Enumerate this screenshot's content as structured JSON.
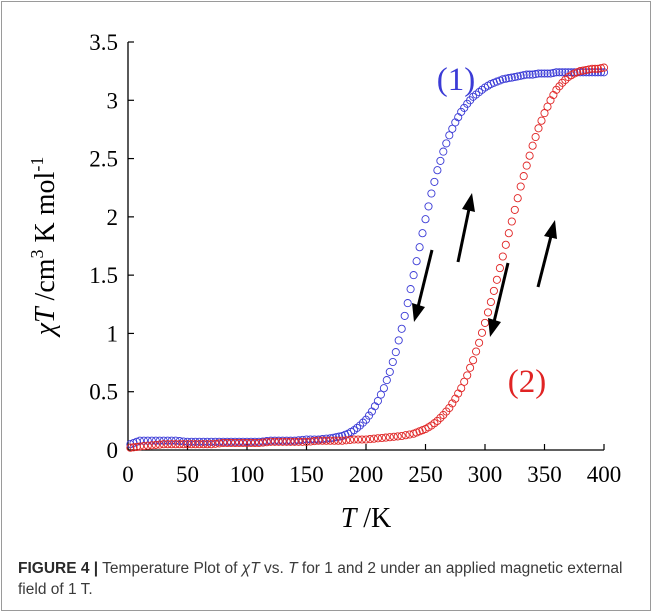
{
  "chart_data": {
    "type": "scatter",
    "xlabel_italic": "T",
    "xlabel_unit": " /K",
    "ylabel": {
      "chi": "χ",
      "T": "T",
      "rest": " /cm",
      "sup1": "3",
      "mid": " K mol",
      "sup2": "-1"
    },
    "xlim": [
      0,
      400
    ],
    "ylim": [
      0,
      3.5
    ],
    "xticks": [
      "0",
      "50",
      "100",
      "150",
      "200",
      "250",
      "300",
      "350",
      "400"
    ],
    "yticks": [
      "0",
      "0.5",
      "1",
      "1.5",
      "2",
      "2.5",
      "3",
      "3.5"
    ],
    "grid": false,
    "series": [
      {
        "name": "(1)",
        "color": "#3b3bd6",
        "x": [
          2,
          10,
          20,
          30,
          40,
          50,
          60,
          70,
          80,
          90,
          100,
          110,
          120,
          130,
          140,
          150,
          160,
          170,
          175,
          180,
          185,
          190,
          195,
          200,
          205,
          210,
          215,
          220,
          225,
          230,
          235,
          240,
          245,
          250,
          255,
          260,
          265,
          270,
          275,
          280,
          285,
          290,
          295,
          300,
          305,
          310,
          315,
          320,
          325,
          330,
          335,
          340,
          345,
          350,
          355,
          360,
          365,
          370,
          375,
          380,
          385,
          390,
          395,
          400
        ],
        "y": [
          0.05,
          0.08,
          0.08,
          0.08,
          0.08,
          0.07,
          0.07,
          0.07,
          0.07,
          0.07,
          0.07,
          0.07,
          0.08,
          0.08,
          0.08,
          0.09,
          0.09,
          0.1,
          0.11,
          0.12,
          0.14,
          0.17,
          0.21,
          0.26,
          0.33,
          0.42,
          0.53,
          0.67,
          0.84,
          1.04,
          1.26,
          1.5,
          1.74,
          1.98,
          2.2,
          2.4,
          2.56,
          2.7,
          2.81,
          2.9,
          2.97,
          3.03,
          3.07,
          3.11,
          3.14,
          3.16,
          3.18,
          3.19,
          3.2,
          3.21,
          3.22,
          3.22,
          3.23,
          3.23,
          3.23,
          3.24,
          3.24,
          3.24,
          3.24,
          3.24,
          3.24,
          3.24,
          3.24,
          3.24
        ]
      },
      {
        "name": "(2)",
        "color": "#e02424",
        "x": [
          2,
          10,
          20,
          30,
          40,
          50,
          60,
          70,
          80,
          90,
          100,
          110,
          120,
          130,
          140,
          150,
          160,
          170,
          180,
          190,
          200,
          210,
          220,
          230,
          240,
          245,
          250,
          255,
          260,
          265,
          270,
          275,
          280,
          285,
          290,
          295,
          300,
          305,
          310,
          315,
          320,
          325,
          330,
          335,
          340,
          345,
          350,
          355,
          360,
          365,
          370,
          375,
          380,
          385,
          390,
          395,
          400
        ],
        "y": [
          0.02,
          0.03,
          0.04,
          0.05,
          0.05,
          0.05,
          0.05,
          0.05,
          0.06,
          0.06,
          0.06,
          0.06,
          0.07,
          0.07,
          0.07,
          0.07,
          0.08,
          0.08,
          0.08,
          0.09,
          0.09,
          0.1,
          0.11,
          0.12,
          0.14,
          0.16,
          0.18,
          0.21,
          0.25,
          0.3,
          0.36,
          0.44,
          0.53,
          0.64,
          0.77,
          0.92,
          1.09,
          1.27,
          1.46,
          1.66,
          1.86,
          2.06,
          2.26,
          2.44,
          2.61,
          2.76,
          2.89,
          3.0,
          3.09,
          3.15,
          3.2,
          3.23,
          3.25,
          3.26,
          3.27,
          3.27,
          3.28
        ]
      }
    ],
    "annotations": {
      "label1": "(1)",
      "label2": "(2)"
    }
  },
  "caption": {
    "label": "FIGURE 4 |",
    "text_a": " Temperature Plot of ",
    "chi": "χ",
    "T1": "T",
    "text_b": " vs. ",
    "T2": "T",
    "text_c": " for 1 and 2 under an applied magnetic external field of 1 T."
  }
}
